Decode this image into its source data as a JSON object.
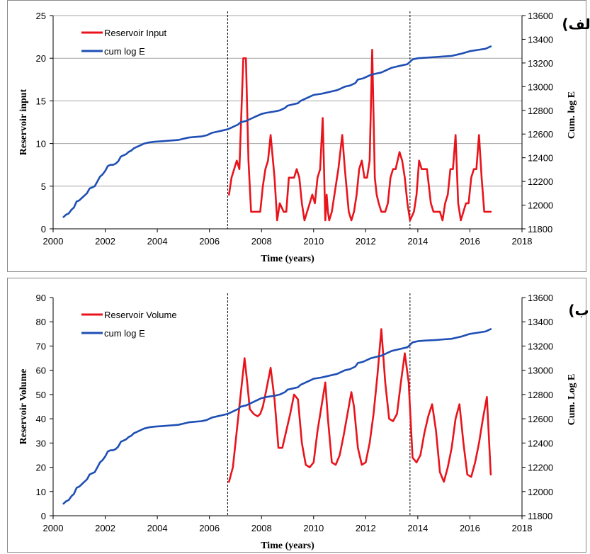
{
  "colors": {
    "red": "#e8141c",
    "blue": "#1f4fb4",
    "grid": "#a6a6a6",
    "axis": "#000000"
  },
  "chart_data": [
    {
      "type": "line",
      "panel_label": "الف)",
      "xlabel": "Time (years)",
      "ylabel": "Reservoir input",
      "y2label": "Cum. log E",
      "xlim": [
        2000,
        2018
      ],
      "ylim": [
        0,
        25
      ],
      "y2lim": [
        11800,
        13600
      ],
      "xticks": [
        "2000",
        "2002",
        "2004",
        "2006",
        "2008",
        "2010",
        "2012",
        "2014",
        "2016",
        "2018"
      ],
      "yticks": [
        "0",
        "5",
        "10",
        "15",
        "20",
        "25"
      ],
      "y2ticks": [
        "11800",
        "12000",
        "12200",
        "12400",
        "12600",
        "12800",
        "13000",
        "13200",
        "13400",
        "13600"
      ],
      "grid": "horizontal",
      "legend_position": "top-left",
      "vlines": [
        2006.7,
        2013.7
      ],
      "series": [
        {
          "name": "Reservoir Input",
          "axis": "left",
          "color": "#e8141c",
          "x": [
            2006.75,
            2006.85,
            2006.95,
            2007.05,
            2007.15,
            2007.3,
            2007.4,
            2007.5,
            2007.6,
            2007.7,
            2007.8,
            2007.95,
            2008.05,
            2008.15,
            2008.25,
            2008.35,
            2008.5,
            2008.6,
            2008.7,
            2008.85,
            2008.95,
            2009.05,
            2009.15,
            2009.25,
            2009.35,
            2009.45,
            2009.55,
            2009.65,
            2009.75,
            2009.85,
            2009.95,
            2010.05,
            2010.15,
            2010.25,
            2010.35,
            2010.4,
            2010.45,
            2010.5,
            2010.55,
            2010.6,
            2010.7,
            2010.85,
            2010.95,
            2011.1,
            2011.2,
            2011.35,
            2011.45,
            2011.55,
            2011.65,
            2011.75,
            2011.85,
            2011.95,
            2012.05,
            2012.15,
            2012.25,
            2012.35,
            2012.42,
            2012.5,
            2012.6,
            2012.75,
            2012.85,
            2012.95,
            2013.05,
            2013.15,
            2013.3,
            2013.4,
            2013.5,
            2013.6,
            2013.7,
            2013.85,
            2013.95,
            2014.05,
            2014.15,
            2014.25,
            2014.35,
            2014.5,
            2014.6,
            2014.7,
            2014.85,
            2014.95,
            2015.05,
            2015.15,
            2015.25,
            2015.35,
            2015.45,
            2015.55,
            2015.65,
            2015.75,
            2015.85,
            2015.95,
            2016.05,
            2016.15,
            2016.25,
            2016.35,
            2016.45,
            2016.55,
            2016.65,
            2016.8
          ],
          "y": [
            4,
            6,
            7,
            8,
            7,
            20,
            20,
            8,
            2,
            2,
            2,
            2,
            5,
            7,
            8,
            11,
            6,
            1,
            3,
            2,
            2,
            6,
            6,
            6,
            7,
            6,
            3,
            1,
            2,
            3,
            4,
            3,
            6,
            7,
            13,
            7,
            1,
            4,
            2,
            1,
            2,
            5,
            7,
            11,
            7,
            2,
            1,
            2,
            4,
            7,
            8,
            6,
            6,
            8,
            21,
            6,
            4,
            3,
            2,
            2,
            3,
            6,
            7,
            7,
            9,
            8,
            6,
            3,
            1,
            2,
            4,
            8,
            7,
            7,
            7,
            3,
            2,
            2,
            2,
            1,
            3,
            4,
            7,
            7,
            11,
            3,
            1,
            2,
            3,
            3,
            6,
            7,
            7,
            11,
            6,
            2,
            2,
            2
          ]
        },
        {
          "name": "cum log E",
          "axis": "right",
          "color": "#1f4fb4",
          "x": [
            2000.4,
            2000.5,
            2000.6,
            2000.7,
            2000.8,
            2000.9,
            2001.0,
            2001.1,
            2001.2,
            2001.3,
            2001.4,
            2001.5,
            2001.6,
            2001.7,
            2001.8,
            2001.9,
            2002.0,
            2002.1,
            2002.2,
            2002.3,
            2002.4,
            2002.5,
            2002.6,
            2002.7,
            2002.8,
            2002.9,
            2003.0,
            2003.1,
            2003.2,
            2003.3,
            2003.4,
            2003.5,
            2003.7,
            2003.9,
            2004.2,
            2004.5,
            2004.8,
            2005.0,
            2005.2,
            2005.4,
            2005.7,
            2005.9,
            2006.0,
            2006.1,
            2006.3,
            2006.5,
            2006.7,
            2006.8,
            2006.9,
            2007.0,
            2007.1,
            2007.2,
            2007.4,
            2007.6,
            2007.8,
            2007.9,
            2008.0,
            2008.2,
            2008.5,
            2008.7,
            2008.9,
            2009.0,
            2009.2,
            2009.4,
            2009.5,
            2009.7,
            2009.9,
            2010.0,
            2010.3,
            2010.5,
            2010.7,
            2010.9,
            2011.0,
            2011.2,
            2011.4,
            2011.6,
            2011.7,
            2011.9,
            2012.0,
            2012.2,
            2012.4,
            2012.6,
            2012.8,
            2013.0,
            2013.2,
            2013.4,
            2013.6,
            2013.7,
            2013.8,
            2014.0,
            2014.3,
            2014.7,
            2015.0,
            2015.3,
            2015.5,
            2015.7,
            2016.0,
            2016.3,
            2016.6,
            2016.7,
            2016.8
          ],
          "y": [
            11900,
            11920,
            11930,
            11960,
            11980,
            12030,
            12040,
            12060,
            12080,
            12100,
            12140,
            12150,
            12160,
            12200,
            12240,
            12260,
            12290,
            12330,
            12340,
            12340,
            12350,
            12370,
            12410,
            12420,
            12430,
            12450,
            12460,
            12480,
            12490,
            12500,
            12510,
            12520,
            12530,
            12535,
            12540,
            12545,
            12550,
            12560,
            12570,
            12575,
            12580,
            12590,
            12600,
            12610,
            12620,
            12630,
            12640,
            12650,
            12660,
            12670,
            12680,
            12700,
            12710,
            12730,
            12750,
            12760,
            12770,
            12780,
            12790,
            12800,
            12820,
            12840,
            12850,
            12860,
            12880,
            12900,
            12920,
            12930,
            12940,
            12950,
            12960,
            12970,
            12980,
            13000,
            13010,
            13030,
            13060,
            13070,
            13080,
            13100,
            13110,
            13120,
            13140,
            13160,
            13170,
            13180,
            13190,
            13210,
            13230,
            13240,
            13245,
            13250,
            13255,
            13260,
            13270,
            13280,
            13300,
            13310,
            13320,
            13330,
            13340
          ]
        }
      ]
    },
    {
      "type": "line",
      "panel_label": "ب)",
      "xlabel": "Time (years)",
      "ylabel": "Reservoir Volume",
      "y2label": "Cum. Log E",
      "xlim": [
        2000,
        2018
      ],
      "ylim": [
        0,
        90
      ],
      "y2lim": [
        11800,
        13600
      ],
      "xticks": [
        "2000",
        "2002",
        "2004",
        "2006",
        "2008",
        "2010",
        "2012",
        "2014",
        "2016",
        "2018"
      ],
      "yticks": [
        "0",
        "10",
        "20",
        "30",
        "40",
        "50",
        "60",
        "70",
        "80",
        "90"
      ],
      "y2ticks": [
        "11800",
        "12000",
        "12200",
        "12400",
        "12600",
        "12800",
        "13000",
        "13200",
        "13400",
        "13600"
      ],
      "grid": "none",
      "legend_position": "top-left",
      "vlines": [
        2006.7,
        2013.7
      ],
      "series": [
        {
          "name": "Reservoir Volume",
          "axis": "left",
          "color": "#e8141c",
          "x": [
            2006.75,
            2006.9,
            2007.05,
            2007.2,
            2007.35,
            2007.45,
            2007.55,
            2007.7,
            2007.85,
            2007.95,
            2008.05,
            2008.15,
            2008.35,
            2008.5,
            2008.65,
            2008.8,
            2008.95,
            2009.1,
            2009.25,
            2009.4,
            2009.55,
            2009.7,
            2009.85,
            2010.0,
            2010.15,
            2010.3,
            2010.45,
            2010.55,
            2010.7,
            2010.85,
            2011.0,
            2011.15,
            2011.3,
            2011.45,
            2011.55,
            2011.7,
            2011.85,
            2012.0,
            2012.15,
            2012.3,
            2012.45,
            2012.6,
            2012.75,
            2012.9,
            2013.05,
            2013.2,
            2013.35,
            2013.5,
            2013.65,
            2013.8,
            2013.95,
            2014.1,
            2014.25,
            2014.4,
            2014.55,
            2014.7,
            2014.85,
            2015.0,
            2015.15,
            2015.3,
            2015.45,
            2015.6,
            2015.75,
            2015.9,
            2016.05,
            2016.2,
            2016.35,
            2016.5,
            2016.65,
            2016.8
          ],
          "y": [
            14,
            20,
            35,
            50,
            65,
            55,
            44,
            42,
            41,
            42,
            45,
            50,
            61,
            48,
            28,
            28,
            35,
            42,
            50,
            48,
            30,
            21,
            20,
            22,
            35,
            45,
            55,
            40,
            22,
            21,
            25,
            33,
            42,
            51,
            45,
            28,
            21,
            22,
            30,
            42,
            58,
            77,
            55,
            40,
            39,
            42,
            55,
            67,
            55,
            24,
            22,
            25,
            34,
            41,
            46,
            35,
            18,
            14,
            20,
            28,
            40,
            46,
            30,
            17,
            16,
            22,
            30,
            40,
            49,
            17
          ]
        },
        {
          "name": "cum log E",
          "axis": "right",
          "color": "#1f4fb4",
          "x": [
            2000.4,
            2000.5,
            2000.6,
            2000.7,
            2000.8,
            2000.9,
            2001.0,
            2001.1,
            2001.2,
            2001.3,
            2001.4,
            2001.5,
            2001.6,
            2001.7,
            2001.8,
            2001.9,
            2002.0,
            2002.1,
            2002.2,
            2002.3,
            2002.4,
            2002.5,
            2002.6,
            2002.7,
            2002.8,
            2002.9,
            2003.0,
            2003.1,
            2003.2,
            2003.3,
            2003.4,
            2003.5,
            2003.7,
            2003.9,
            2004.2,
            2004.5,
            2004.8,
            2005.0,
            2005.2,
            2005.4,
            2005.7,
            2005.9,
            2006.0,
            2006.1,
            2006.3,
            2006.5,
            2006.7,
            2006.8,
            2006.9,
            2007.0,
            2007.1,
            2007.2,
            2007.4,
            2007.6,
            2007.8,
            2007.9,
            2008.0,
            2008.2,
            2008.5,
            2008.7,
            2008.9,
            2009.0,
            2009.2,
            2009.4,
            2009.5,
            2009.7,
            2009.9,
            2010.0,
            2010.3,
            2010.5,
            2010.7,
            2010.9,
            2011.0,
            2011.2,
            2011.4,
            2011.6,
            2011.7,
            2011.9,
            2012.0,
            2012.2,
            2012.4,
            2012.6,
            2012.8,
            2013.0,
            2013.2,
            2013.4,
            2013.6,
            2013.7,
            2013.8,
            2014.0,
            2014.3,
            2014.7,
            2015.0,
            2015.3,
            2015.5,
            2015.7,
            2016.0,
            2016.3,
            2016.6,
            2016.7,
            2016.8
          ],
          "y": [
            11900,
            11920,
            11930,
            11960,
            11980,
            12030,
            12040,
            12060,
            12080,
            12100,
            12140,
            12150,
            12160,
            12200,
            12240,
            12260,
            12290,
            12330,
            12340,
            12340,
            12350,
            12370,
            12410,
            12420,
            12430,
            12450,
            12460,
            12480,
            12490,
            12500,
            12510,
            12520,
            12530,
            12535,
            12540,
            12545,
            12550,
            12560,
            12570,
            12575,
            12580,
            12590,
            12600,
            12610,
            12620,
            12630,
            12640,
            12650,
            12660,
            12670,
            12680,
            12700,
            12710,
            12730,
            12750,
            12760,
            12770,
            12780,
            12790,
            12800,
            12820,
            12840,
            12850,
            12860,
            12880,
            12900,
            12920,
            12930,
            12940,
            12950,
            12960,
            12970,
            12980,
            13000,
            13010,
            13030,
            13060,
            13070,
            13080,
            13100,
            13110,
            13120,
            13140,
            13160,
            13170,
            13180,
            13190,
            13210,
            13230,
            13240,
            13245,
            13250,
            13255,
            13260,
            13270,
            13280,
            13300,
            13310,
            13320,
            13330,
            13340
          ]
        }
      ]
    }
  ]
}
